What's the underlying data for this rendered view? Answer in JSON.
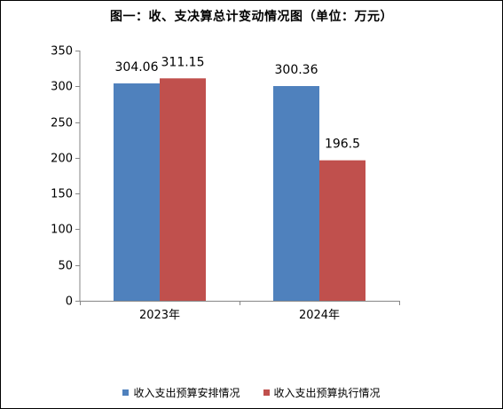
{
  "chart_data": {
    "type": "bar",
    "title": "图一：收、支决算总计变动情况图（单位：万元）",
    "categories": [
      "2023年",
      "2024年"
    ],
    "series": [
      {
        "name": "收入支出预算安排情况",
        "values": [
          304.06,
          300.36
        ],
        "labels": [
          "304.06",
          "300.36"
        ],
        "color": "#4f81bd"
      },
      {
        "name": "收入支出预算执行情况",
        "values": [
          311.15,
          196.5
        ],
        "labels": [
          "311.15",
          "196.5"
        ],
        "color": "#c0504d"
      }
    ],
    "ylim": [
      0,
      350
    ],
    "yticks": [
      "0",
      "50",
      "100",
      "150",
      "200",
      "250",
      "300",
      "350"
    ],
    "ytick_values": [
      0,
      50,
      100,
      150,
      200,
      250,
      300,
      350
    ],
    "xlabel": "",
    "ylabel": "",
    "grid": false,
    "legend_position": "bottom"
  }
}
